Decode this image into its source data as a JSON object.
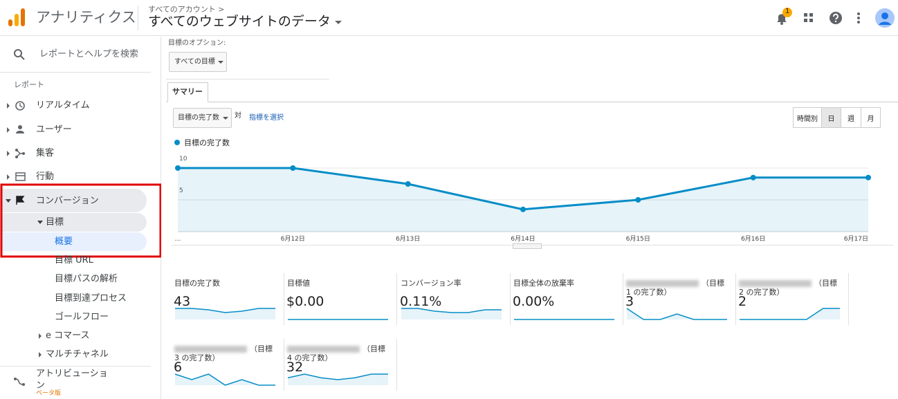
{
  "header": {
    "app_name": "アナリティクス",
    "breadcrumb": "すべてのアカウント >",
    "property": "すべてのウェブサイトのデータ",
    "notification_count": "1"
  },
  "sidebar": {
    "search": "レポートとヘルプを検索",
    "section": "レポート",
    "items": [
      "リアルタイム",
      "ユーザー",
      "集客",
      "行動",
      "コンバージョン"
    ],
    "sub_items": [
      "目標",
      "概要",
      "目標 URL",
      "目標パスの解析",
      "目標到達プロセス",
      "ゴールフロー",
      "e コマース",
      "マルチチャネル",
      "アトリビューション"
    ],
    "beta": "ベータ版"
  },
  "options": {
    "label": "目標のオプション:",
    "dropdown": "すべての目標",
    "tab": "サマリー",
    "metric": "目標の完了数",
    "versus": "対",
    "select_metric": "指標を選択",
    "periods": [
      "時間別",
      "日",
      "週",
      "月"
    ]
  },
  "chart_data": {
    "type": "line",
    "categories": [
      "…",
      "6月12日",
      "6月13日",
      "6月14日",
      "6月15日",
      "6月16日",
      "6月17日"
    ],
    "series": [
      {
        "name": "目標の完了数",
        "color": "#058dc7",
        "values": [
          10,
          10,
          7.5,
          3.5,
          5,
          8.5,
          8.5
        ]
      }
    ],
    "ylim": [
      0,
      12
    ],
    "yticks": [
      5,
      10
    ],
    "grid": true
  },
  "cards": [
    {
      "label": "目標の完了数",
      "value": "43",
      "sparkline": [
        8,
        8,
        7,
        5,
        6,
        8,
        8
      ]
    },
    {
      "label": "目標値",
      "value": "$0.00",
      "sparkline": [
        0,
        0,
        0,
        0,
        0,
        0,
        0
      ]
    },
    {
      "label": "コンバージョン率",
      "value": "0.11%",
      "sparkline": [
        8,
        8,
        6,
        5,
        5,
        7,
        7
      ]
    },
    {
      "label": "目標全体の放棄率",
      "value": "0.00%",
      "sparkline": [
        0,
        0,
        0,
        0,
        0,
        0,
        0
      ]
    },
    {
      "label": "（目標 1 の完了数）",
      "value": "3",
      "sparkline": [
        2,
        0,
        0,
        1,
        0,
        0,
        0
      ]
    },
    {
      "label": "（目標 2 の完了数）",
      "value": "2",
      "sparkline": [
        0,
        0,
        0,
        0,
        0,
        1,
        1
      ]
    },
    {
      "label": "（目標 3 の完了数）",
      "value": "6",
      "sparkline": [
        4,
        2,
        4,
        0,
        2,
        0,
        0
      ]
    },
    {
      "label": "（目標 4 の完了数）",
      "value": "32",
      "sparkline": [
        4,
        6,
        4,
        3,
        4,
        6,
        6
      ]
    }
  ]
}
